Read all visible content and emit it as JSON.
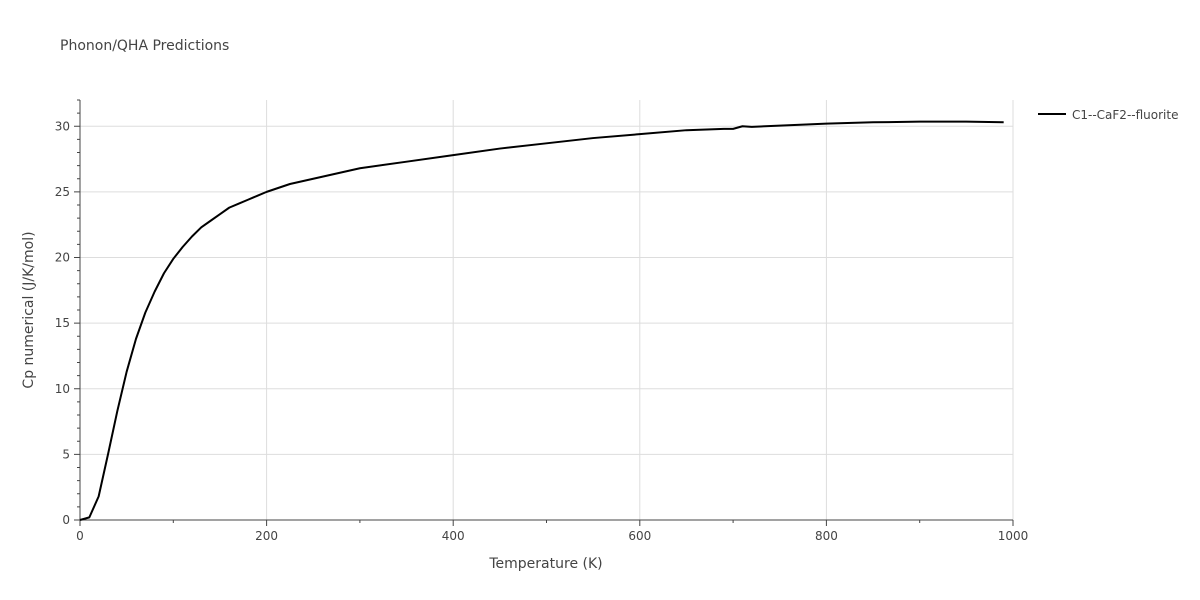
{
  "chart_data": {
    "type": "line",
    "title": "Phonon/QHA Predictions",
    "xlabel": "Temperature (K)",
    "ylabel": "Cp numerical (J/K/mol)",
    "xlim": [
      0,
      1000
    ],
    "ylim": [
      0,
      32
    ],
    "x_ticks": [
      0,
      200,
      400,
      600,
      800,
      1000
    ],
    "x_tick_labels": [
      "0",
      "200",
      "400",
      "600",
      "800",
      "1000"
    ],
    "y_ticks": [
      0,
      5,
      10,
      15,
      20,
      25,
      30
    ],
    "y_tick_labels": [
      "0",
      "5",
      "10",
      "15",
      "20",
      "25",
      "30"
    ],
    "grid": true,
    "legend_position": "top-right outside",
    "series": [
      {
        "name": "C1--CaF2--fluorite",
        "color": "#000000",
        "x": [
          0,
          10,
          20,
          30,
          40,
          50,
          60,
          70,
          80,
          90,
          100,
          110,
          120,
          130,
          140,
          150,
          160,
          170,
          180,
          190,
          200,
          225,
          250,
          275,
          300,
          350,
          400,
          450,
          500,
          550,
          600,
          650,
          690,
          700,
          710,
          720,
          750,
          800,
          850,
          900,
          950,
          990
        ],
        "y": [
          0,
          0.2,
          1.8,
          5.0,
          8.3,
          11.3,
          13.8,
          15.8,
          17.4,
          18.8,
          19.9,
          20.8,
          21.6,
          22.3,
          22.8,
          23.3,
          23.8,
          24.1,
          24.4,
          24.7,
          25.0,
          25.6,
          26.0,
          26.4,
          26.8,
          27.3,
          27.8,
          28.3,
          28.7,
          29.1,
          29.4,
          29.7,
          29.8,
          29.8,
          30.0,
          29.95,
          30.05,
          30.2,
          30.3,
          30.35,
          30.35,
          30.3
        ]
      }
    ]
  }
}
